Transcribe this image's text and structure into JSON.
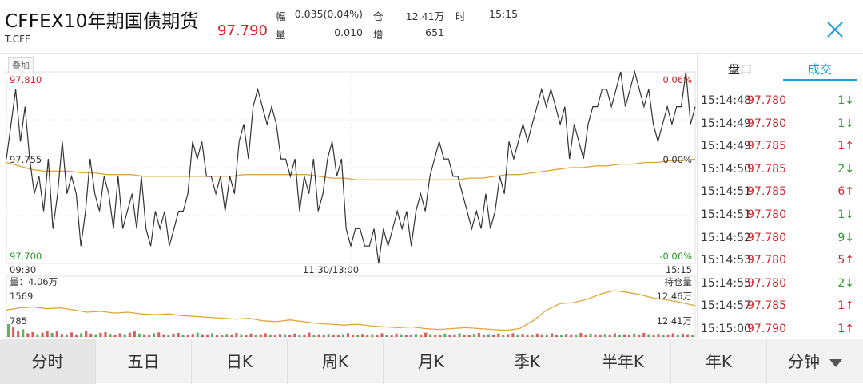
{
  "header": {
    "title": "CFFEX10年期国债期货",
    "code": "T.CFE",
    "price": "97.790",
    "stats": {
      "fu_label": "幅",
      "fu_value": "0.035(0.04%)",
      "cang_label": "仓",
      "cang_value": "12.41万",
      "shi_label": "时",
      "shi_value": "15:15",
      "liang_label": "量",
      "liang_value": "0.010",
      "zeng_label": "增",
      "zeng_value": "651"
    },
    "close_icon": "close-icon"
  },
  "chart": {
    "overlay_label": "叠加",
    "price_high": "97.810",
    "price_mid": "97.755",
    "price_low": "97.700",
    "pct_high": "0.06%",
    "pct_mid": "0.00%",
    "pct_low": "-0.06%",
    "time_start": "09:30",
    "time_mid": "11:30/13:00",
    "time_end": "15:15",
    "vol_label": "量：4.06万",
    "vol_max": "1569",
    "vol_mid": "785",
    "oi_label": "持仓量",
    "oi_high": "12.46万",
    "oi_low": "12.41万",
    "colors": {
      "price_line": "#333333",
      "avg_line": "#e0a53a",
      "up": "#d0262a",
      "down": "#2a9a2a",
      "grid": "#e8e8e8"
    }
  },
  "chart_data": {
    "type": "line",
    "ylim": [
      97.7,
      97.81
    ],
    "price_series": [
      97.76,
      97.78,
      97.8,
      97.77,
      97.79,
      97.76,
      97.74,
      97.75,
      97.73,
      97.76,
      97.72,
      97.74,
      97.77,
      97.74,
      97.75,
      97.74,
      97.71,
      97.73,
      97.76,
      97.74,
      97.73,
      97.75,
      97.74,
      97.72,
      97.75,
      97.72,
      97.73,
      97.74,
      97.72,
      97.75,
      97.72,
      97.71,
      97.73,
      97.72,
      97.73,
      97.71,
      97.72,
      97.73,
      97.73,
      97.74,
      97.77,
      97.76,
      97.77,
      97.75,
      97.75,
      97.74,
      97.75,
      97.73,
      97.75,
      97.74,
      97.77,
      97.78,
      97.76,
      97.79,
      97.8,
      97.79,
      97.78,
      97.79,
      97.78,
      97.76,
      97.76,
      97.75,
      97.76,
      97.73,
      97.75,
      97.74,
      97.76,
      97.73,
      97.74,
      97.76,
      97.77,
      97.75,
      97.76,
      97.72,
      97.71,
      97.72,
      97.72,
      97.71,
      97.71,
      97.72,
      97.7,
      97.72,
      97.71,
      97.72,
      97.73,
      97.72,
      97.73,
      97.71,
      97.73,
      97.74,
      97.73,
      97.75,
      97.76,
      97.77,
      97.76,
      97.76,
      97.75,
      97.75,
      97.74,
      97.73,
      97.72,
      97.73,
      97.72,
      97.74,
      97.72,
      97.73,
      97.75,
      97.74,
      97.77,
      97.76,
      97.77,
      97.78,
      97.77,
      97.78,
      97.79,
      97.8,
      97.79,
      97.8,
      97.79,
      97.78,
      97.79,
      97.76,
      97.78,
      97.77,
      97.76,
      97.78,
      97.79,
      97.79,
      97.8,
      97.8,
      97.79,
      97.8,
      97.81,
      97.79,
      97.8,
      97.81,
      97.8,
      97.79,
      97.8,
      97.78,
      97.77,
      97.78,
      97.79,
      97.78,
      97.79,
      97.79,
      97.81,
      97.78,
      97.79
    ],
    "avg_series": [
      97.758,
      97.756,
      97.754,
      97.753,
      97.753,
      97.753,
      97.752,
      97.752,
      97.751,
      97.751,
      97.751,
      97.75,
      97.75,
      97.75,
      97.75,
      97.75,
      97.75,
      97.75,
      97.75,
      97.751,
      97.751,
      97.751,
      97.751,
      97.751,
      97.751,
      97.75,
      97.749,
      97.749,
      97.748,
      97.748,
      97.748,
      97.748,
      97.748,
      97.748,
      97.748,
      97.748,
      97.748,
      97.749,
      97.749,
      97.75,
      97.751,
      97.751,
      97.752,
      97.753,
      97.754,
      97.755,
      97.755,
      97.756,
      97.756,
      97.757,
      97.757,
      97.758,
      97.758,
      97.759,
      97.759,
      97.76
    ],
    "time_labels": [
      "09:30",
      "11:30/13:00",
      "15:15"
    ],
    "volume_max": 1569,
    "volume_series": [
      420,
      310,
      180,
      250,
      120,
      160,
      90,
      140,
      210,
      130,
      180,
      100,
      90,
      150,
      80,
      120,
      200,
      110,
      90,
      130,
      160,
      100,
      70,
      120,
      90,
      140,
      180,
      110,
      90,
      70,
      120,
      150,
      90,
      80,
      110,
      130,
      70,
      60,
      100,
      140,
      90,
      80,
      120,
      70,
      60,
      100,
      80,
      130,
      90,
      60,
      110,
      70,
      90,
      120,
      80,
      60,
      100,
      90,
      70,
      110,
      60,
      80,
      140,
      70,
      90,
      60,
      100,
      80,
      70,
      90,
      120,
      60,
      80,
      100,
      70,
      90,
      60,
      120,
      80,
      70,
      110,
      90,
      60,
      80,
      100,
      70,
      140,
      90,
      80,
      60,
      110,
      70,
      90,
      120,
      80,
      60,
      100,
      130,
      70,
      90,
      80,
      110,
      60,
      90,
      120,
      80,
      100,
      70,
      60,
      110,
      90,
      80,
      120,
      70,
      60,
      100,
      90,
      80,
      130,
      70,
      110,
      90,
      60,
      100,
      80,
      120,
      70,
      90,
      60,
      110,
      80,
      130,
      90,
      70,
      100,
      60,
      80,
      120,
      70,
      110,
      90,
      60
    ],
    "open_interest_range": [
      "12.41万",
      "12.46万"
    ]
  },
  "trades": {
    "tab_pankou": "盘口",
    "tab_chengjiao": "成交",
    "rows": [
      {
        "time": "15:14:48",
        "price": "97.780",
        "vol": "1",
        "dir": "down"
      },
      {
        "time": "15:14:49",
        "price": "97.780",
        "vol": "1",
        "dir": "down"
      },
      {
        "time": "15:14:49",
        "price": "97.785",
        "vol": "1",
        "dir": "up"
      },
      {
        "time": "15:14:50",
        "price": "97.785",
        "vol": "2",
        "dir": "down"
      },
      {
        "time": "15:14:51",
        "price": "97.785",
        "vol": "6",
        "dir": "up"
      },
      {
        "time": "15:14:51",
        "price": "97.780",
        "vol": "1",
        "dir": "down"
      },
      {
        "time": "15:14:52",
        "price": "97.780",
        "vol": "9",
        "dir": "down"
      },
      {
        "time": "15:14:53",
        "price": "97.780",
        "vol": "5",
        "dir": "up"
      },
      {
        "time": "15:14:55",
        "price": "97.780",
        "vol": "2",
        "dir": "down"
      },
      {
        "time": "15:14:57",
        "price": "97.785",
        "vol": "1",
        "dir": "up"
      },
      {
        "time": "15:15:00",
        "price": "97.790",
        "vol": "1",
        "dir": "up"
      }
    ],
    "arrows": {
      "up": "↑",
      "down": "↓"
    }
  },
  "tabs": [
    "分时",
    "五日",
    "日K",
    "周K",
    "月K",
    "季K",
    "半年K",
    "年K",
    "分钟"
  ]
}
